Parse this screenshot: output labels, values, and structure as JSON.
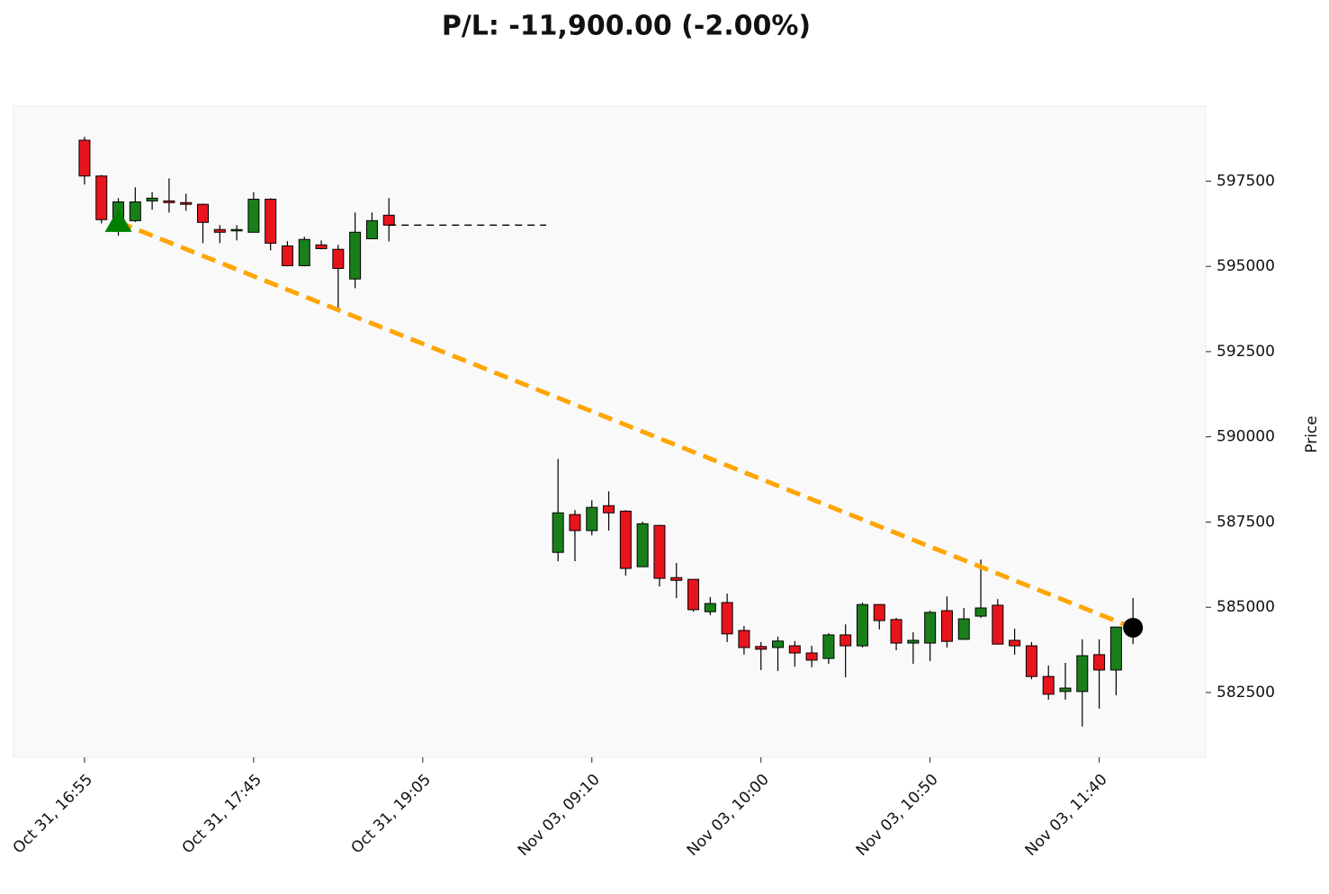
{
  "chart_data": {
    "type": "candlestick",
    "title": "P/L: -11,900.00 (-2.00%)",
    "y_label": "Price",
    "categories": [
      "Oct 31, 16:55",
      null,
      null,
      null,
      null,
      null,
      null,
      null,
      null,
      null,
      "Oct 31, 17:45",
      null,
      null,
      null,
      null,
      null,
      null,
      null,
      null,
      null,
      "Oct 31, 19:05",
      null,
      null,
      null,
      null,
      null,
      null,
      null,
      null,
      null,
      "Nov 03, 09:10",
      null,
      null,
      null,
      null,
      null,
      null,
      null,
      null,
      null,
      "Nov 03, 10:00",
      null,
      null,
      null,
      null,
      null,
      null,
      null,
      null,
      null,
      "Nov 03, 10:50",
      null,
      null,
      null,
      null,
      null,
      null,
      null,
      null,
      null,
      "Nov 03, 11:40",
      null,
      null
    ],
    "open": [
      598700,
      597650,
      596340,
      596340,
      596920,
      596920,
      596870,
      596820,
      596080,
      596050,
      596000,
      596970,
      595600,
      595020,
      595630,
      595500,
      594630,
      595810,
      596500,
      null,
      null,
      null,
      null,
      null,
      null,
      null,
      null,
      null,
      586610,
      587720,
      587250,
      587980,
      587820,
      586190,
      587400,
      585870,
      585820,
      584870,
      585140,
      584320,
      583850,
      583820,
      583870,
      583660,
      583500,
      584190,
      583870,
      585080,
      584640,
      583950,
      583950,
      584900,
      584060,
      584740,
      585060,
      584030,
      583870,
      582970,
      582530,
      582530,
      583610,
      583160,
      584420
    ],
    "high": [
      598800,
      597680,
      597000,
      597320,
      597180,
      597580,
      597130,
      596840,
      596210,
      596210,
      597180,
      597000,
      595740,
      595870,
      595760,
      595630,
      596580,
      596580,
      597000,
      null,
      null,
      null,
      null,
      null,
      null,
      null,
      null,
      null,
      589350,
      587850,
      588140,
      588400,
      587850,
      587510,
      587420,
      586300,
      585820,
      585300,
      585400,
      584450,
      583980,
      584140,
      584010,
      583870,
      584240,
      584500,
      585140,
      585080,
      584690,
      584270,
      584900,
      585320,
      584980,
      586400,
      585240,
      584370,
      583980,
      583290,
      583370,
      584060,
      584060,
      584430,
      585270
    ],
    "low": [
      597400,
      596260,
      595900,
      596300,
      596660,
      596580,
      596630,
      595680,
      595680,
      595760,
      595990,
      595470,
      595000,
      595000,
      595500,
      593680,
      594360,
      595800,
      595730,
      null,
      null,
      null,
      null,
      null,
      null,
      null,
      null,
      null,
      586350,
      586350,
      587110,
      587250,
      585930,
      586190,
      585610,
      585270,
      584870,
      584770,
      583980,
      583610,
      583160,
      583130,
      583260,
      583240,
      583340,
      582950,
      583820,
      584350,
      583740,
      583340,
      583420,
      583820,
      584060,
      584690,
      583920,
      583610,
      582890,
      582290,
      582290,
      581500,
      582030,
      582420,
      583920
    ],
    "close": [
      597650,
      596370,
      596890,
      596890,
      597000,
      596870,
      596820,
      596290,
      596000,
      596080,
      596970,
      595680,
      595020,
      595790,
      595520,
      594940,
      596000,
      596340,
      596210,
      null,
      null,
      null,
      null,
      null,
      null,
      null,
      null,
      null,
      587770,
      587250,
      587930,
      587770,
      586140,
      587450,
      585850,
      585790,
      584930,
      585110,
      584220,
      583820,
      583770,
      584010,
      583660,
      583450,
      584190,
      583870,
      585080,
      584610,
      583950,
      584030,
      584850,
      584000,
      584660,
      584980,
      583920,
      583870,
      582970,
      582450,
      582630,
      583580,
      583160,
      584420,
      584600
    ],
    "up_color": "#1a7f1a",
    "down_color": "#e8141c",
    "entry": {
      "x": 2,
      "price": 596300,
      "color": "#008000"
    },
    "exit": {
      "x": 62,
      "price": 584400,
      "color": "#000000"
    },
    "trade_line_color": "#ffa500",
    "xlim": [
      -4.2,
      66.3
    ],
    "ylim": [
      580600,
      599700
    ],
    "yticks": [
      582500,
      585000,
      587500,
      590000,
      592500,
      595000,
      597500
    ]
  }
}
